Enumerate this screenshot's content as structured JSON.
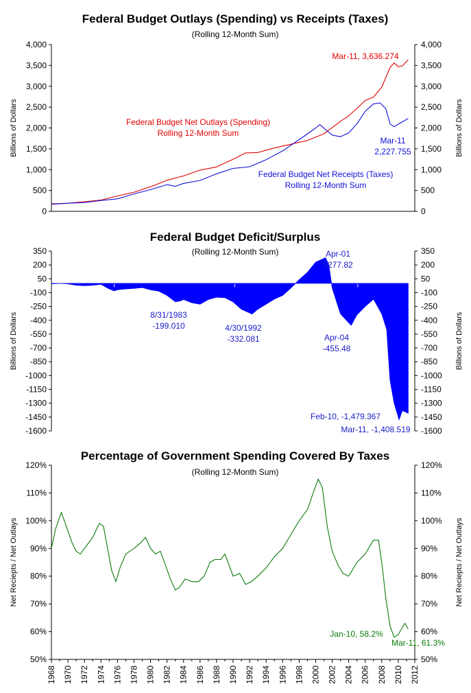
{
  "colors": {
    "outlays": "#e00000",
    "receipts": "#1010d8",
    "deficit": "#0000ff",
    "deficit_text": "#1a1ac8",
    "coverage": "#0a7a0a"
  },
  "x_axis": {
    "ticks": [
      "1968",
      "1970",
      "1972",
      "1974",
      "1976",
      "1978",
      "1980",
      "1982",
      "1984",
      "1986",
      "1988",
      "1990",
      "1992",
      "1994",
      "1996",
      "1998",
      "2000",
      "2002",
      "2004",
      "2006",
      "2008",
      "2010",
      "2012"
    ],
    "range": [
      1968,
      2012
    ]
  },
  "chart_data": [
    {
      "type": "line",
      "title": "Federal Budget Outlays (Spending) vs Receipts (Taxes)",
      "subtitle": "(Rolling 12-Month Sum)",
      "ylabel": "Billions of Dollars",
      "ylim": [
        0,
        4000
      ],
      "yticks": [
        "0",
        "500",
        "1,000",
        "1,500",
        "2,000",
        "2,500",
        "3,000",
        "3,500",
        "4,000"
      ],
      "yticks_values": [
        0,
        500,
        1000,
        1500,
        2000,
        2500,
        3000,
        3500,
        4000
      ],
      "series": [
        {
          "key": "outlays",
          "x": [
            1968,
            1970,
            1972,
            1974,
            1976,
            1978,
            1980,
            1982,
            1984,
            1986,
            1988,
            1990,
            1991.5,
            1993,
            1995,
            1997,
            1999,
            2001,
            2002,
            2003,
            2004,
            2005,
            2006,
            2007,
            2008,
            2009,
            2009.5,
            2010,
            2010.5,
            2011.2
          ],
          "y": [
            180,
            195,
            230,
            270,
            370,
            460,
            590,
            745,
            850,
            990,
            1065,
            1250,
            1400,
            1410,
            1520,
            1610,
            1700,
            1860,
            2010,
            2160,
            2290,
            2470,
            2660,
            2740,
            2980,
            3450,
            3560,
            3470,
            3490,
            3636
          ]
        },
        {
          "key": "receipts",
          "x": [
            1968,
            1970,
            1972,
            1974,
            1976,
            1978,
            1980,
            1982,
            1983,
            1984,
            1986,
            1988,
            1990,
            1992,
            1994,
            1996,
            1998,
            2000,
            2000.5,
            2001.5,
            2002,
            2003,
            2004,
            2005,
            2006,
            2007,
            2007.8,
            2008.5,
            2009,
            2009.5,
            2010,
            2011.2
          ],
          "y": [
            170,
            195,
            210,
            260,
            300,
            420,
            520,
            640,
            600,
            670,
            740,
            900,
            1030,
            1070,
            1240,
            1450,
            1720,
            2000,
            2080,
            1910,
            1830,
            1790,
            1880,
            2100,
            2400,
            2580,
            2600,
            2460,
            2100,
            2030,
            2090,
            2228
          ]
        }
      ],
      "annotations": [
        {
          "key": "outlays",
          "lines": [
            "Mar-11, 3,636.274"
          ]
        },
        {
          "key": "outlays",
          "lines": [
            "Federal Budget Net Outlays (Spending)",
            "Rolling 12-Month Sum"
          ]
        },
        {
          "key": "receipts",
          "lines": [
            "Mar-11",
            "2,227.755"
          ]
        },
        {
          "key": "receipts",
          "lines": [
            "Federal Budget Net Receipts (Taxes)",
            "Rolling 12-Month Sum"
          ]
        }
      ]
    },
    {
      "type": "area",
      "title": "Federal Budget Deficit/Surplus",
      "subtitle": "(Rolling 12-Month Sum)",
      "ylabel": "Billions of Dollars",
      "ylim": [
        -1600,
        350
      ],
      "yticks": [
        "350",
        "200",
        "50",
        "-100",
        "-250",
        "-400",
        "-550",
        "-700",
        "-850",
        "-1000",
        "-1150",
        "-1300",
        "-1450",
        "-1600"
      ],
      "yticks_values": [
        350,
        200,
        50,
        -100,
        -250,
        -400,
        -550,
        -700,
        -850,
        -1000,
        -1150,
        -1300,
        -1450,
        -1600
      ],
      "series": [
        {
          "key": "deficit",
          "x": [
            1968,
            1969,
            1970,
            1971,
            1972,
            1973,
            1974,
            1975,
            1975.6,
            1976,
            1977,
            1978,
            1979,
            1980,
            1981,
            1982,
            1983,
            1983.6,
            1984,
            1985,
            1986,
            1987,
            1988,
            1989,
            1990,
            1991,
            1992.3,
            1993,
            1994,
            1995,
            1996,
            1997,
            1998,
            1999,
            2000,
            2001.2,
            2001.6,
            2002,
            2003,
            2004.3,
            2005,
            2006,
            2007,
            2008,
            2008.6,
            2009,
            2009.5,
            2010.1,
            2010.5,
            2011.2
          ],
          "y": [
            -5,
            0,
            -5,
            -20,
            -25,
            -20,
            -10,
            -60,
            -80,
            -70,
            -60,
            -55,
            -45,
            -70,
            -85,
            -130,
            -199,
            -190,
            -175,
            -210,
            -225,
            -175,
            -150,
            -155,
            -200,
            -280,
            -332,
            -280,
            -225,
            -170,
            -130,
            -50,
            40,
            120,
            230,
            278,
            200,
            -50,
            -330,
            -455,
            -340,
            -250,
            -170,
            -330,
            -500,
            -1050,
            -1300,
            -1479,
            -1380,
            -1409
          ]
        }
      ],
      "annotations": [
        {
          "key": "deficit",
          "lines": [
            "Apr-01",
            "$277.82"
          ]
        },
        {
          "key": "deficit",
          "lines": [
            "8/31/1983",
            "-199.010"
          ]
        },
        {
          "key": "deficit",
          "lines": [
            "4/30/1992",
            "-332.081"
          ]
        },
        {
          "key": "deficit",
          "lines": [
            "Apr-04",
            "-455.48"
          ]
        },
        {
          "key": "deficit",
          "lines": [
            "Feb-10, -1,479.367"
          ]
        },
        {
          "key": "deficit",
          "lines": [
            "Mar-11, -1,408.519"
          ]
        }
      ]
    },
    {
      "type": "line",
      "title": "Percentage of Government Spending Covered By Taxes",
      "subtitle": "(Rolling 12-Month Sum)",
      "ylabel": "Net Reciepts / Net Outlays",
      "ylim": [
        50,
        120
      ],
      "yticks": [
        "50%",
        "60%",
        "70%",
        "80%",
        "90%",
        "100%",
        "110%",
        "120%"
      ],
      "yticks_values": [
        50,
        60,
        70,
        80,
        90,
        100,
        110,
        120
      ],
      "series": [
        {
          "key": "coverage",
          "x": [
            1968,
            1968.5,
            1969.2,
            1969.8,
            1970.5,
            1971,
            1971.5,
            1972,
            1973,
            1973.8,
            1974.3,
            1974.8,
            1975.3,
            1975.8,
            1976.3,
            1977,
            1978,
            1978.8,
            1979.4,
            1980,
            1980.6,
            1981.2,
            1981.8,
            1982.4,
            1983,
            1983.5,
            1984.2,
            1985,
            1985.8,
            1986.5,
            1987.2,
            1987.8,
            1988.5,
            1989,
            1989.5,
            1990,
            1990.8,
            1991.5,
            1992.2,
            1993,
            1994,
            1995,
            1996,
            1997,
            1998,
            1999,
            1999.7,
            2000.3,
            2000.8,
            2001.4,
            2002,
            2002.7,
            2003.3,
            2004,
            2005,
            2006,
            2007,
            2007.6,
            2008,
            2008.5,
            2009,
            2009.5,
            2010,
            2010.4,
            2010.8,
            2011.2
          ],
          "y": [
            90,
            97,
            103,
            98,
            92,
            89,
            88,
            90,
            94,
            99,
            98,
            90,
            82,
            78,
            83,
            88,
            90,
            92,
            94,
            90,
            88,
            89,
            84,
            79,
            75,
            76,
            79,
            78,
            78,
            80,
            85,
            86,
            86,
            88,
            84,
            80,
            81,
            77,
            78,
            80,
            83,
            87,
            90,
            95,
            100,
            104,
            110,
            115,
            112,
            98,
            89,
            84,
            81,
            80,
            85,
            88,
            93,
            93,
            85,
            72,
            62,
            58,
            59,
            61,
            63,
            61
          ]
        }
      ],
      "annotations": [
        {
          "key": "coverage",
          "lines": [
            "Jan-10, 58.2%"
          ]
        },
        {
          "key": "coverage",
          "lines": [
            "Mar-11, 61.3%"
          ]
        }
      ]
    }
  ]
}
